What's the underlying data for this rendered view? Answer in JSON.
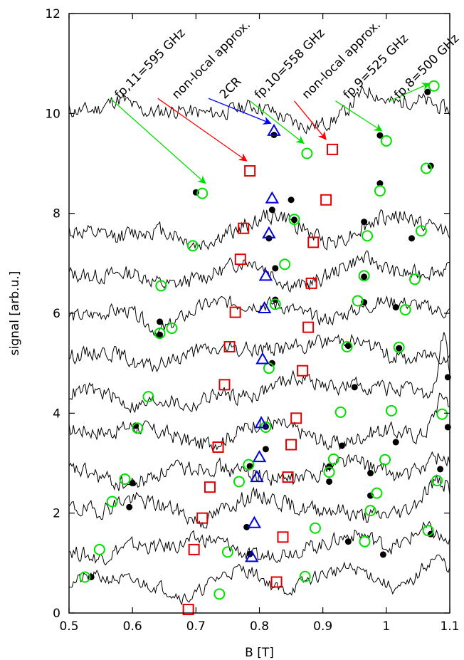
{
  "chart_data": {
    "type": "line",
    "title": "",
    "xlabel": "B [T]",
    "ylabel": "signal [arb.u.]",
    "xlim": [
      0.5,
      1.1
    ],
    "ylim": [
      0,
      12
    ],
    "x_ticks": [
      "0.5",
      "0.6",
      "0.7",
      "0.8",
      "0.9",
      "1",
      "1.1"
    ],
    "y_ticks": [
      "0",
      "2",
      "4",
      "6",
      "8",
      "10",
      "12"
    ],
    "grid": false,
    "legend": "none",
    "series": [
      {
        "base": 10.0,
        "amp": 0.18,
        "noise": 0.14,
        "seed": 11,
        "start": 0.5,
        "end": 1.1,
        "features": [
          [
            0.58,
            0.08,
            0.03
          ],
          [
            0.79,
            0.05,
            0.05
          ],
          [
            0.86,
            -0.06,
            0.06
          ],
          [
            0.97,
            0.1,
            0.03
          ],
          [
            1.05,
            0.08,
            0.04
          ]
        ]
      },
      {
        "base": 7.6,
        "amp": 0.2,
        "noise": 0.15,
        "seed": 12,
        "start": 0.5,
        "end": 1.1,
        "features": [
          [
            0.7,
            -0.05,
            0.03
          ],
          [
            0.83,
            0.08,
            0.05
          ],
          [
            0.92,
            -0.04,
            0.04
          ],
          [
            1.02,
            0.1,
            0.05
          ]
        ]
      },
      {
        "base": 6.8,
        "amp": 0.2,
        "noise": 0.14,
        "seed": 13,
        "start": 0.5,
        "end": 1.1,
        "features": [
          [
            0.65,
            -0.06,
            0.04
          ],
          [
            0.79,
            0.06,
            0.04
          ],
          [
            0.86,
            -0.05,
            0.06
          ],
          [
            0.97,
            0.07,
            0.04
          ]
        ]
      },
      {
        "base": 6.0,
        "amp": 0.2,
        "noise": 0.13,
        "seed": 14,
        "start": 0.5,
        "end": 1.1,
        "features": [
          [
            0.64,
            -0.08,
            0.03
          ],
          [
            0.73,
            0.04,
            0.04
          ],
          [
            0.82,
            0.06,
            0.05
          ],
          [
            0.9,
            -0.05,
            0.04
          ],
          [
            1.0,
            0.07,
            0.05
          ]
        ]
      },
      {
        "base": 5.2,
        "amp": 0.2,
        "noise": 0.14,
        "seed": 15,
        "start": 0.5,
        "end": 1.1,
        "features": [
          [
            0.62,
            -0.06,
            0.04
          ],
          [
            0.81,
            0.04,
            0.05
          ],
          [
            0.94,
            0.08,
            0.05
          ],
          [
            1.03,
            -0.05,
            0.03
          ]
        ]
      },
      {
        "base": 4.4,
        "amp": 0.22,
        "noise": 0.14,
        "seed": 16,
        "start": 0.5,
        "end": 1.1,
        "features": [
          [
            0.6,
            -0.05,
            0.04
          ],
          [
            0.69,
            -0.08,
            0.03
          ],
          [
            0.86,
            0.06,
            0.05
          ],
          [
            0.95,
            0.05,
            0.04
          ],
          [
            1.09,
            0.3,
            0.01
          ]
        ]
      },
      {
        "base": 3.6,
        "amp": 0.22,
        "noise": 0.15,
        "seed": 17,
        "start": 0.5,
        "end": 1.1,
        "features": [
          [
            0.6,
            0.05,
            0.03
          ],
          [
            0.7,
            -0.06,
            0.04
          ],
          [
            0.8,
            0.05,
            0.04
          ],
          [
            0.93,
            -0.04,
            0.04
          ],
          [
            1.09,
            0.2,
            0.02
          ]
        ]
      },
      {
        "base": 2.8,
        "amp": 0.22,
        "noise": 0.15,
        "seed": 18,
        "start": 0.5,
        "end": 1.1,
        "features": [
          [
            0.6,
            -0.05,
            0.04
          ],
          [
            0.72,
            0.05,
            0.04
          ],
          [
            0.83,
            -0.04,
            0.04
          ],
          [
            0.93,
            0.06,
            0.04
          ],
          [
            1.08,
            0.08,
            0.03
          ]
        ]
      },
      {
        "base": 2.1,
        "amp": 0.22,
        "noise": 0.15,
        "seed": 19,
        "start": 0.5,
        "end": 1.1,
        "features": [
          [
            0.59,
            0.04,
            0.03
          ],
          [
            0.71,
            -0.05,
            0.03
          ],
          [
            0.81,
            0.05,
            0.05
          ],
          [
            0.96,
            -0.05,
            0.04
          ],
          [
            1.08,
            0.12,
            0.03
          ]
        ]
      },
      {
        "base": 1.3,
        "amp": 0.2,
        "noise": 0.14,
        "seed": 20,
        "start": 0.5,
        "end": 1.1,
        "features": [
          [
            0.55,
            -0.04,
            0.03
          ],
          [
            0.7,
            0.05,
            0.04
          ],
          [
            0.79,
            -0.05,
            0.03
          ],
          [
            0.96,
            0.07,
            0.04
          ],
          [
            1.06,
            0.08,
            0.03
          ]
        ]
      },
      {
        "base": 0.6,
        "amp": 0.2,
        "noise": 0.12,
        "seed": 21,
        "start": 0.5,
        "end": 1.1,
        "features": [
          [
            0.53,
            0.03,
            0.03
          ],
          [
            0.69,
            -0.07,
            0.03
          ],
          [
            0.78,
            0.07,
            0.04
          ],
          [
            0.84,
            -0.04,
            0.03
          ],
          [
            0.95,
            0.08,
            0.05
          ],
          [
            1.02,
            -0.05,
            0.03
          ],
          [
            1.08,
            0.12,
            0.03
          ]
        ]
      }
    ],
    "markers": {
      "black_dots": [
        [
          0.7,
          8.42
        ],
        [
          0.823,
          9.57
        ],
        [
          0.99,
          9.56
        ],
        [
          1.065,
          10.43
        ],
        [
          0.82,
          8.07
        ],
        [
          0.85,
          8.27
        ],
        [
          0.99,
          8.6
        ],
        [
          1.07,
          8.95
        ],
        [
          0.815,
          7.5
        ],
        [
          0.855,
          7.87
        ],
        [
          0.965,
          7.83
        ],
        [
          1.04,
          7.5
        ],
        [
          0.825,
          6.9
        ],
        [
          0.965,
          6.73
        ],
        [
          0.643,
          5.83
        ],
        [
          0.643,
          5.57
        ],
        [
          0.825,
          6.27
        ],
        [
          0.965,
          6.22
        ],
        [
          1.015,
          6.12
        ],
        [
          0.94,
          5.35
        ],
        [
          1.02,
          5.3
        ],
        [
          0.82,
          5.0
        ],
        [
          0.95,
          4.52
        ],
        [
          0.605,
          3.75
        ],
        [
          0.81,
          3.73
        ],
        [
          1.097,
          4.72
        ],
        [
          1.097,
          3.72
        ],
        [
          0.81,
          3.28
        ],
        [
          0.93,
          3.35
        ],
        [
          1.015,
          3.42
        ],
        [
          0.6,
          2.6
        ],
        [
          0.91,
          2.93
        ],
        [
          0.975,
          2.8
        ],
        [
          1.085,
          2.88
        ],
        [
          0.595,
          2.12
        ],
        [
          0.785,
          2.94
        ],
        [
          0.91,
          2.63
        ],
        [
          0.975,
          2.35
        ],
        [
          0.78,
          1.72
        ],
        [
          0.94,
          1.43
        ],
        [
          1.07,
          1.58
        ],
        [
          0.535,
          0.72
        ],
        [
          0.785,
          1.18
        ],
        [
          0.995,
          1.17
        ]
      ],
      "green_circles": [
        [
          0.71,
          8.4
        ],
        [
          0.875,
          9.2
        ],
        [
          1.0,
          9.45
        ],
        [
          1.075,
          10.55
        ],
        [
          0.695,
          7.35
        ],
        [
          0.855,
          7.88
        ],
        [
          0.99,
          8.45
        ],
        [
          1.063,
          8.9
        ],
        [
          0.645,
          6.55
        ],
        [
          0.84,
          6.98
        ],
        [
          0.97,
          7.55
        ],
        [
          1.055,
          7.65
        ],
        [
          0.965,
          6.75
        ],
        [
          1.045,
          6.68
        ],
        [
          0.643,
          5.6
        ],
        [
          0.662,
          5.7
        ],
        [
          0.825,
          6.18
        ],
        [
          0.955,
          6.25
        ],
        [
          1.03,
          6.07
        ],
        [
          0.815,
          4.9
        ],
        [
          0.938,
          5.33
        ],
        [
          1.02,
          5.32
        ],
        [
          0.625,
          4.33
        ],
        [
          0.608,
          3.7
        ],
        [
          0.81,
          3.72
        ],
        [
          0.928,
          4.02
        ],
        [
          1.008,
          4.05
        ],
        [
          1.088,
          3.98
        ],
        [
          0.917,
          3.08
        ],
        [
          0.998,
          3.07
        ],
        [
          0.588,
          2.68
        ],
        [
          0.768,
          2.63
        ],
        [
          0.783,
          2.97
        ],
        [
          0.91,
          2.82
        ],
        [
          0.985,
          2.4
        ],
        [
          1.08,
          2.65
        ],
        [
          0.568,
          2.23
        ],
        [
          0.975,
          2.05
        ],
        [
          0.548,
          1.27
        ],
        [
          0.75,
          1.22
        ],
        [
          0.888,
          1.7
        ],
        [
          0.966,
          1.43
        ],
        [
          1.066,
          1.65
        ],
        [
          0.525,
          0.72
        ],
        [
          0.737,
          0.38
        ],
        [
          0.872,
          0.73
        ]
      ],
      "red_squares": [
        [
          0.785,
          8.85
        ],
        [
          0.915,
          9.28
        ],
        [
          0.775,
          7.7
        ],
        [
          0.905,
          8.27
        ],
        [
          0.77,
          7.08
        ],
        [
          0.885,
          7.42
        ],
        [
          0.762,
          6.02
        ],
        [
          0.882,
          6.6
        ],
        [
          0.753,
          5.33
        ],
        [
          0.877,
          5.72
        ],
        [
          0.745,
          4.57
        ],
        [
          0.868,
          4.85
        ],
        [
          0.735,
          3.32
        ],
        [
          0.858,
          3.9
        ],
        [
          0.722,
          2.52
        ],
        [
          0.85,
          3.37
        ],
        [
          0.71,
          1.9
        ],
        [
          0.845,
          2.72
        ],
        [
          0.697,
          1.27
        ],
        [
          0.837,
          1.52
        ],
        [
          0.688,
          0.07
        ],
        [
          0.827,
          0.62
        ]
      ],
      "blue_triangles": [
        [
          0.823,
          9.65
        ],
        [
          0.82,
          8.3
        ],
        [
          0.815,
          7.6
        ],
        [
          0.81,
          6.75
        ],
        [
          0.808,
          6.1
        ],
        [
          0.805,
          5.08
        ],
        [
          0.803,
          3.8
        ],
        [
          0.8,
          3.12
        ],
        [
          0.796,
          2.72
        ],
        [
          0.792,
          1.8
        ],
        [
          0.788,
          1.12
        ]
      ]
    },
    "annotations": [
      {
        "text": "fp,11=595 GHz",
        "color": "#00e000",
        "label_x": 0.58,
        "label_y": 10.28,
        "arrow_from": [
          0.565,
          10.3
        ],
        "arrow_to": [
          0.715,
          8.6
        ]
      },
      {
        "text": "non-local approx.",
        "color": "#ff0000",
        "label_x": 0.67,
        "label_y": 10.28,
        "arrow_from": [
          0.64,
          10.3
        ],
        "arrow_to": [
          0.78,
          9.05
        ]
      },
      {
        "text": "2CR",
        "color": "#0000ff",
        "label_x": 0.745,
        "label_y": 10.28,
        "arrow_from": [
          0.72,
          10.3
        ],
        "arrow_to": [
          0.818,
          9.8
        ]
      },
      {
        "text": "fp,10=558 GHz",
        "color": "#00e000",
        "label_x": 0.8,
        "label_y": 10.28,
        "arrow_from": [
          0.785,
          10.25
        ],
        "arrow_to": [
          0.87,
          9.4
        ]
      },
      {
        "text": "non-local approx.",
        "color": "#ff0000",
        "label_x": 0.875,
        "label_y": 10.28,
        "arrow_from": [
          0.855,
          10.25
        ],
        "arrow_to": [
          0.905,
          9.48
        ]
      },
      {
        "text": "fp,9=525 GHz",
        "color": "#00e000",
        "label_x": 0.94,
        "label_y": 10.28,
        "arrow_from": [
          0.92,
          10.25
        ],
        "arrow_to": [
          0.993,
          9.65
        ]
      },
      {
        "text": "fp,8=500 GHz",
        "color": "#00e000",
        "label_x": 1.02,
        "label_y": 10.28,
        "arrow_from": [
          1.005,
          10.25
        ],
        "arrow_to": [
          1.068,
          10.6
        ]
      }
    ],
    "colors": {
      "axis": "#000000",
      "trace": "#000000",
      "dot": "#000000",
      "circle": "#00e000",
      "square": "#e00000",
      "triangle": "#0000e0"
    }
  }
}
